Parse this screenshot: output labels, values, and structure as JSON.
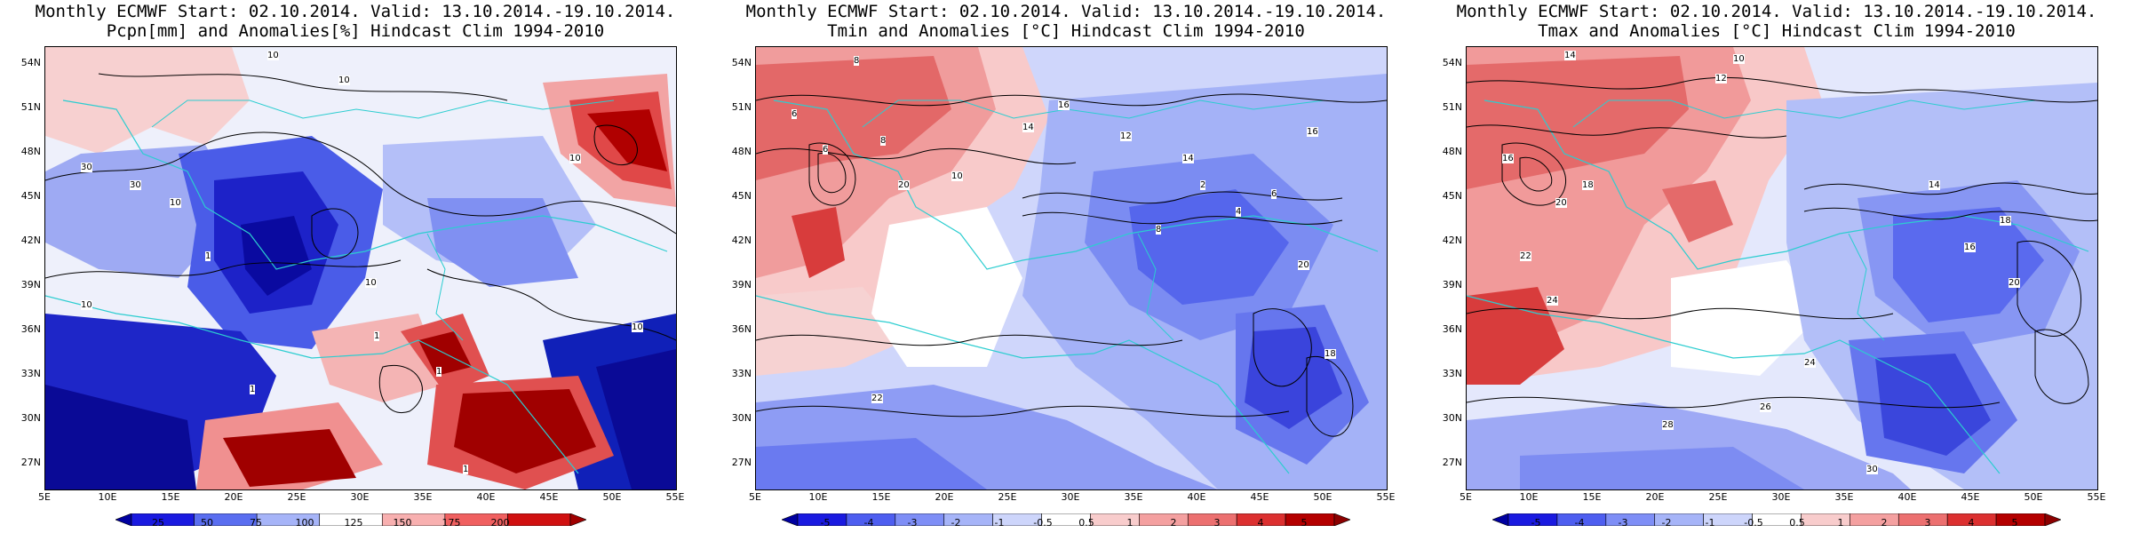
{
  "panels": [
    {
      "id": "pcpn",
      "title_line1": "Monthly ECMWF Start: 02.10.2014. Valid: 13.10.2014.-19.10.2014.",
      "title_line2": "Pcpn[mm] and Anomalies[%] Hindcast Clim 1994-2010",
      "colorbar_ticks": [
        "25",
        "50",
        "75",
        "100",
        "125",
        "150",
        "175",
        "200"
      ],
      "colorbar_colors": [
        "#0000a0",
        "#1a1ae0",
        "#5a6ef0",
        "#a6b4f8",
        "#ffffff",
        "#f8b0b0",
        "#f06060",
        "#d01010",
        "#a00000"
      ]
    },
    {
      "id": "tmin",
      "title_line1": "Monthly ECMWF Start: 02.10.2014. Valid: 13.10.2014.-19.10.2014.",
      "title_line2": "Tmin and Anomalies [°C] Hindcast Clim 1994-2010",
      "colorbar_ticks": [
        "-5",
        "-4",
        "-3",
        "-2",
        "-1",
        "-0.5",
        "0.5",
        "1",
        "2",
        "3",
        "4",
        "5"
      ],
      "colorbar_colors": [
        "#0000a0",
        "#1a1ae0",
        "#4e5ef0",
        "#7e8ef6",
        "#a6b4f8",
        "#cdd5fb",
        "#ffffff",
        "#f8cccc",
        "#f4a0a0",
        "#ec7070",
        "#dc3030",
        "#b40000",
        "#8c0000"
      ]
    },
    {
      "id": "tmax",
      "title_line1": "Monthly ECMWF Start: 02.10.2014. Valid: 13.10.2014.-19.10.2014.",
      "title_line2": "Tmax and Anomalies [°C] Hindcast Clim 1994-2010",
      "colorbar_ticks": [
        "-5",
        "-4",
        "-3",
        "-2",
        "-1",
        "-0.5",
        "0.5",
        "1",
        "2",
        "3",
        "4",
        "5"
      ],
      "colorbar_colors": [
        "#0000a0",
        "#1a1ae0",
        "#4e5ef0",
        "#7e8ef6",
        "#a6b4f8",
        "#cdd5fb",
        "#ffffff",
        "#f8cccc",
        "#f4a0a0",
        "#ec7070",
        "#dc3030",
        "#b40000",
        "#8c0000"
      ]
    }
  ],
  "lat_labels": [
    "54N",
    "51N",
    "48N",
    "45N",
    "42N",
    "39N",
    "36N",
    "33N",
    "30N",
    "27N"
  ],
  "lon_labels": [
    "5E",
    "10E",
    "15E",
    "20E",
    "25E",
    "30E",
    "35E",
    "40E",
    "45E",
    "50E",
    "55E"
  ],
  "contour_labels": {
    "pcpn": [
      "10",
      "10",
      "30",
      "30",
      "10",
      "1",
      "10",
      "10",
      "1",
      "1",
      "10",
      "10",
      "1",
      "1"
    ],
    "tmin": [
      "8",
      "6",
      "6",
      "8",
      "10",
      "14",
      "16",
      "20",
      "12",
      "14",
      "16",
      "18",
      "20",
      "22",
      "2",
      "4",
      "6",
      "8"
    ],
    "tmax": [
      "14",
      "10",
      "12",
      "16",
      "18",
      "20",
      "22",
      "24",
      "26",
      "28",
      "30",
      "14",
      "16",
      "18",
      "20",
      "24"
    ]
  }
}
